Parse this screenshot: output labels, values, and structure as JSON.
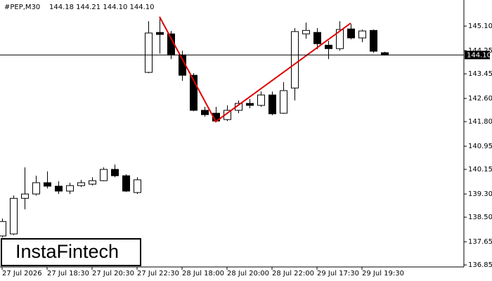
{
  "chart_data": {
    "type": "candlestick",
    "symbol": "#PEP,M30",
    "header_ohlc": "144.18 144.21 144.10 144.10",
    "logo": "InstaFintech",
    "categories": [
      "27 Jul 2026",
      null,
      null,
      null,
      "27 Jul 18:30",
      null,
      null,
      null,
      "27 Jul 20:30",
      null,
      null,
      null,
      "27 Jul 22:30",
      null,
      null,
      null,
      "28 Jul 18:00",
      null,
      null,
      null,
      "28 Jul 20:00",
      null,
      null,
      null,
      "28 Jul 22:00",
      null,
      null,
      null,
      "29 Jul 17:30",
      null,
      null,
      null,
      "29 Jul 19:30",
      null,
      null
    ],
    "open": [
      137.85,
      137.92,
      139.15,
      139.3,
      139.69,
      139.57,
      139.4,
      139.59,
      139.64,
      139.76,
      140.15,
      139.93,
      139.35,
      143.5,
      144.88,
      144.83,
      144.1,
      143.4,
      142.19,
      142.09,
      141.87,
      142.19,
      142.43,
      142.36,
      142.72,
      142.09,
      142.96,
      144.83,
      144.88,
      144.44,
      144.32,
      145.0,
      144.69,
      144.95,
      144.18
    ],
    "high": [
      138.45,
      139.25,
      140.22,
      139.93,
      140.08,
      139.74,
      139.69,
      139.79,
      139.88,
      140.22,
      140.32,
      139.98,
      139.88,
      145.27,
      145.42,
      144.93,
      144.25,
      143.47,
      142.31,
      142.31,
      142.36,
      142.53,
      142.58,
      142.84,
      142.84,
      143.16,
      145.03,
      145.22,
      145.03,
      144.59,
      145.27,
      145.17,
      144.98,
      144.98,
      144.21
    ],
    "low": [
      137.8,
      137.88,
      138.77,
      139.25,
      139.49,
      139.3,
      139.3,
      139.54,
      139.59,
      139.74,
      139.88,
      139.37,
      139.3,
      143.47,
      144.15,
      143.96,
      143.21,
      142.16,
      141.97,
      141.78,
      141.82,
      142.09,
      142.26,
      142.31,
      142.02,
      142.07,
      142.53,
      144.66,
      144.3,
      143.96,
      144.25,
      144.64,
      144.54,
      144.18,
      144.1
    ],
    "close": [
      138.35,
      139.15,
      139.3,
      139.69,
      139.57,
      139.4,
      139.59,
      139.69,
      139.76,
      140.15,
      139.93,
      139.4,
      139.79,
      144.86,
      144.81,
      144.1,
      143.4,
      142.19,
      142.04,
      141.82,
      142.19,
      142.43,
      142.36,
      142.72,
      142.07,
      142.87,
      144.91,
      144.95,
      144.49,
      144.32,
      144.98,
      144.69,
      144.93,
      144.23,
      144.1
    ],
    "up_color": "#ffffff",
    "down_color": "#000000",
    "ylim": [
      136.78,
      146.0
    ],
    "yticks": [
      {
        "value": 145.1,
        "label": "145.10"
      },
      144.25,
      143.45,
      {
        "value": 142.6,
        "label": "142.60"
      },
      {
        "value": 141.8,
        "label": "141.80"
      },
      140.95,
      140.15,
      {
        "value": 139.3,
        "label": "139.30"
      },
      {
        "value": 138.5,
        "label": "138.50"
      },
      137.65,
      136.85
    ],
    "last_price": {
      "value": 144.1,
      "label": "144.10"
    },
    "pattern": {
      "color": "#e00000",
      "x": [
        14,
        19,
        31
      ],
      "values": [
        145.42,
        141.8,
        145.2
      ]
    },
    "grid": false
  }
}
